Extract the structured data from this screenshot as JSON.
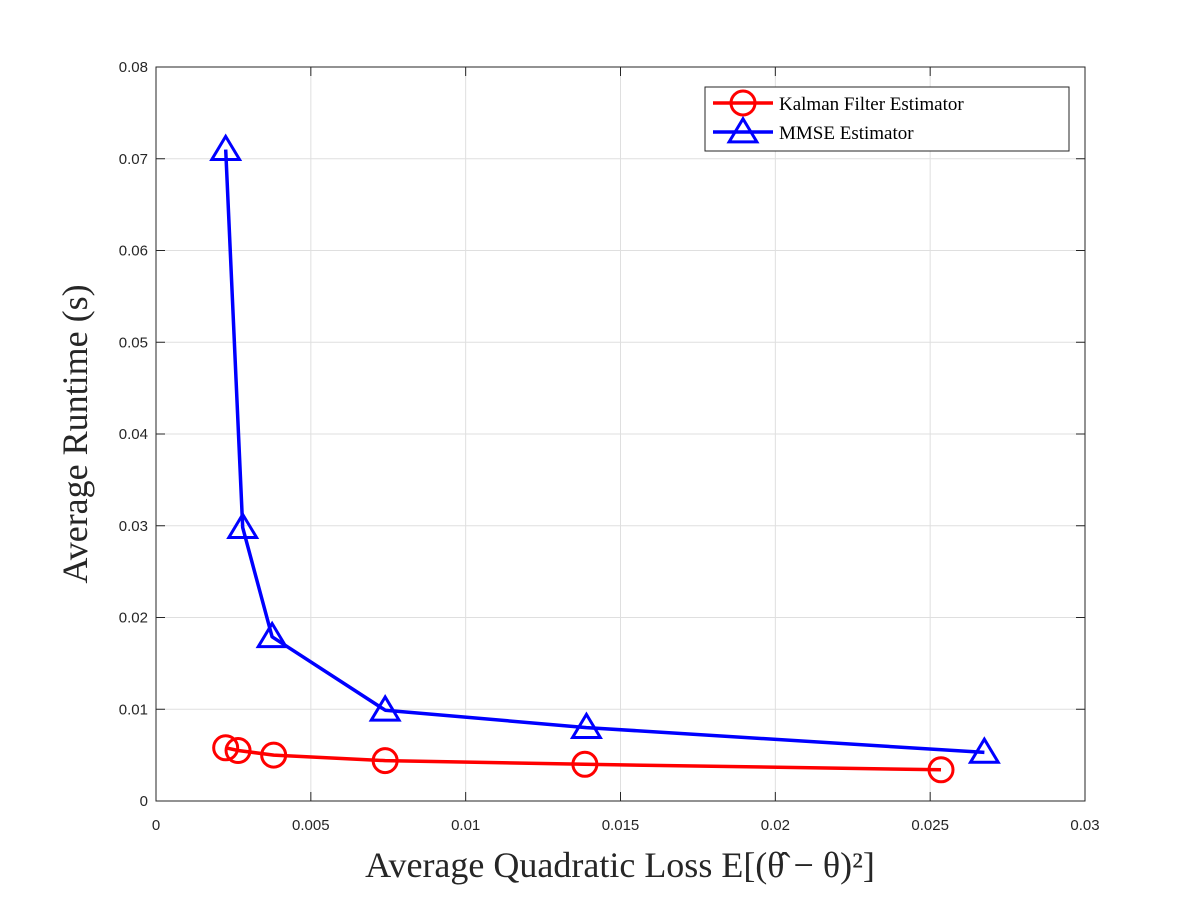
{
  "chart_data": {
    "type": "line",
    "title": "",
    "xlabel": "Average Quadratic Loss E[(θ̂ − θ)²]",
    "ylabel": "Average Runtime (s)",
    "xlim": [
      0,
      0.03
    ],
    "ylim": [
      0,
      0.08
    ],
    "xticks": [
      0,
      0.005,
      0.01,
      0.015,
      0.02,
      0.025,
      0.03
    ],
    "xtick_labels": [
      "0",
      "0.005",
      "0.01",
      "0.015",
      "0.02",
      "0.025",
      "0.03"
    ],
    "yticks": [
      0,
      0.01,
      0.02,
      0.03,
      0.04,
      0.05,
      0.06,
      0.07,
      0.08
    ],
    "ytick_labels": [
      "0",
      "0.01",
      "0.02",
      "0.03",
      "0.04",
      "0.05",
      "0.06",
      "0.07",
      "0.08"
    ],
    "grid": true,
    "legend_position": "top-right",
    "series": [
      {
        "name": "Kalman Filter Estimator",
        "color": "#ff0000",
        "marker": "circle",
        "x": [
          0.00225,
          0.00265,
          0.0038,
          0.0074,
          0.01385,
          0.02535
        ],
        "y": [
          0.0058,
          0.0055,
          0.005,
          0.0044,
          0.004,
          0.0034
        ]
      },
      {
        "name": "MMSE Estimator",
        "color": "#0000ff",
        "marker": "triangle",
        "x": [
          0.00225,
          0.0028,
          0.00375,
          0.0074,
          0.0139,
          0.02675
        ],
        "y": [
          0.071,
          0.0298,
          0.0179,
          0.0099,
          0.008,
          0.0053
        ]
      }
    ]
  }
}
